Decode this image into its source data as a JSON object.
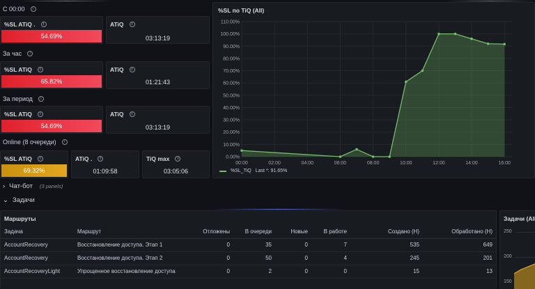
{
  "sections": {
    "s1": "С 00:00",
    "s2": "За час",
    "s3": "За период",
    "s4": "Online (8 очереди)"
  },
  "stats": {
    "r1": {
      "sl_title": "%SL ATiQ .",
      "sl_value": "54.69%",
      "atiq_title": "ATiQ",
      "atiq_value": "03:13:19"
    },
    "r2": {
      "sl_title": "%SL ATiQ",
      "sl_value": "65.82%",
      "atiq_title": "ATiQ",
      "atiq_value": "01:21:43"
    },
    "r3": {
      "sl_title": "%SL ATiQ",
      "sl_value": "54.69%",
      "atiq_title": "ATiQ",
      "atiq_value": "03:13:19"
    },
    "r4": {
      "sl_title": "%SL ATiQ",
      "sl_value": "69.32%",
      "atiq_title": "ATiQ .",
      "atiq_value": "01:09:58",
      "max_title": "TiQ max",
      "max_value": "03:05:06"
    }
  },
  "chart_panel": {
    "title": "%SL по TiQ (All)",
    "legend": "%SL_TiQ",
    "legend_last": "Last *: 91.65%"
  },
  "chart_data": {
    "type": "area",
    "title": "%SL по TiQ (All)",
    "x_ticks": [
      "00:00",
      "02:00",
      "04:00",
      "06:00",
      "08:00",
      "10:00",
      "12:00",
      "14:00",
      "16:00"
    ],
    "y_ticks": [
      "0.00%",
      "10.00%",
      "20.00%",
      "30.00%",
      "40.00%",
      "50.00%",
      "60.00%",
      "70.00%",
      "80.00%",
      "90.00%",
      "100.00%",
      "110.00%"
    ],
    "ylim": [
      0,
      110
    ],
    "xlim": [
      0,
      16.5
    ],
    "series": [
      {
        "name": "%SL_TiQ",
        "x": [
          0,
          6,
          7,
          8,
          9,
          10,
          11,
          12,
          13,
          14,
          15,
          16
        ],
        "values": [
          5,
          0,
          6,
          0,
          0,
          61,
          70,
          100,
          100,
          96,
          92,
          91.65
        ]
      }
    ]
  },
  "rows": {
    "chatbot": "Чат-бот",
    "chatbot_count": "(3 panels)",
    "tasks": "Задачи"
  },
  "routes": {
    "title": "Маршруты",
    "columns": [
      "Задача",
      "Маршрут",
      "Отложены",
      "В очереди",
      "Новые",
      "В работе",
      "Создано (Н)",
      "Обработано (Н)"
    ],
    "rows": [
      [
        "AccountRecovery",
        "Восстановление доступа. Этап 1",
        "0",
        "35",
        "0",
        "7",
        "535",
        "649"
      ],
      [
        "AccountRecovery",
        "Восстановление доступа. Этап 2",
        "0",
        "50",
        "0",
        "4",
        "245",
        "201"
      ],
      [
        "AccountRecoveryLight",
        "Упрощенное восстановление доступа",
        "0",
        "2",
        "0",
        "0",
        "15",
        "13"
      ]
    ]
  },
  "side_panel": {
    "title": "Задачи (All)",
    "y_top": "250",
    "y_mid": "200",
    "y_bot": "150"
  }
}
